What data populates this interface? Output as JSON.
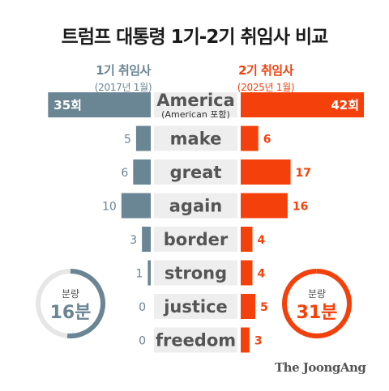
{
  "title": "트럼프 대통령 1기-2기 취임사 비교",
  "left_header": {
    "label": "1기 취임사",
    "date": "(2017년 1월)"
  },
  "right_header": {
    "label": "2기 취임사",
    "date": "(2025년 1월)"
  },
  "brand": "The JoongAng",
  "colors": {
    "first_term": "#6a8593",
    "second_term": "#f4410c",
    "word_bg": "#eeeeee",
    "word_text": "#555555"
  },
  "chart_data": {
    "type": "bar",
    "categories": [
      "America",
      "make",
      "great",
      "again",
      "border",
      "strong",
      "justice",
      "freedom"
    ],
    "category_notes": [
      "(American 포함)",
      "",
      "",
      "",
      "",
      "",
      "",
      ""
    ],
    "series": [
      {
        "name": "1기 취임사",
        "values": [
          35,
          5,
          6,
          10,
          3,
          1,
          0,
          0
        ],
        "labels": [
          "35회",
          "5",
          "6",
          "10",
          "3",
          "1",
          "0",
          "0"
        ]
      },
      {
        "name": "2기 취임사",
        "values": [
          42,
          6,
          17,
          16,
          4,
          4,
          5,
          3
        ],
        "labels": [
          "42회",
          "6",
          "17",
          "16",
          "4",
          "4",
          "5",
          "3"
        ]
      }
    ],
    "length_label": "분량",
    "length_values": [
      16,
      31
    ],
    "length_labels": [
      "16분",
      "31분"
    ]
  }
}
